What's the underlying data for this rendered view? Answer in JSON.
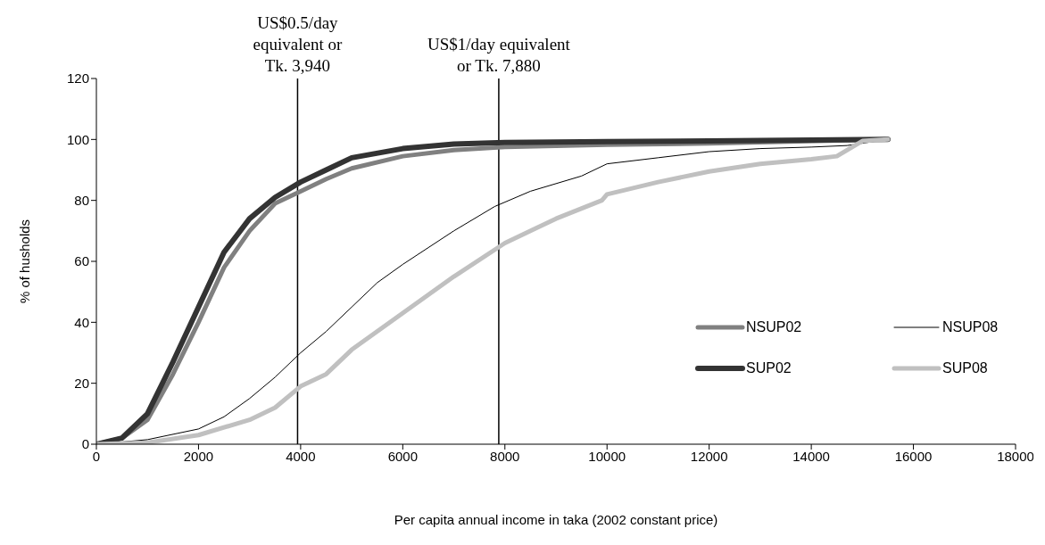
{
  "chart_data": {
    "type": "line",
    "xlabel": "Per capita annual income in taka (2002 constant price)",
    "ylabel": "% of husholds",
    "xlim": [
      0,
      18000
    ],
    "xticks": [
      0,
      2000,
      4000,
      6000,
      8000,
      10000,
      12000,
      14000,
      16000,
      18000
    ],
    "ylim": [
      0,
      120
    ],
    "yticks": [
      0,
      20,
      40,
      60,
      80,
      100,
      120
    ],
    "grid": false,
    "legend": "bottom right",
    "marker": "none",
    "line_style": "solid",
    "ref_lines": [
      {
        "axis": "x",
        "value": 3940,
        "label": "US$0.5/day equivalent or Tk. 3,940",
        "color": "#000000"
      },
      {
        "axis": "x",
        "value": 7880,
        "label": "US$1/day equivalent or Tk. 7,880",
        "color": "#000000"
      }
    ],
    "series": [
      {
        "name": "NSUP02",
        "color": "#808080",
        "x": [
          0,
          500,
          1000,
          1500,
          2000,
          2500,
          3000,
          3500,
          4000,
          4500,
          5000,
          6000,
          7000,
          8000,
          10000,
          12000,
          15500
        ],
        "values": [
          0,
          2,
          8,
          23,
          40,
          58,
          70,
          79,
          83,
          87,
          90.5,
          94.5,
          96.5,
          97.5,
          98.3,
          98.7,
          100
        ]
      },
      {
        "name": "NSUP08",
        "color": "#000000",
        "x": [
          0,
          1000,
          2000,
          2500,
          3000,
          3500,
          4000,
          4500,
          5000,
          5500,
          6000,
          7000,
          7800,
          8500,
          9500,
          10000,
          11000,
          12000,
          13000,
          14000,
          14700,
          15500
        ],
        "values": [
          0,
          1.5,
          5,
          9,
          15,
          22,
          30,
          37,
          45,
          53,
          59,
          70,
          78,
          83,
          88,
          92,
          94,
          96,
          97,
          97.5,
          98,
          100
        ]
      },
      {
        "name": "SUP02",
        "color": "#333333",
        "x": [
          0,
          500,
          1000,
          1500,
          2000,
          2500,
          3000,
          3500,
          4000,
          4500,
          5000,
          6000,
          7000,
          8000,
          10000,
          12000,
          15500
        ],
        "values": [
          0,
          2,
          10,
          27,
          45,
          63,
          74,
          81,
          86,
          90,
          94,
          97,
          98.5,
          99,
          99.3,
          99.5,
          100
        ]
      },
      {
        "name": "SUP08",
        "color": "#c0c0c0",
        "x": [
          0,
          1000,
          2000,
          3000,
          3500,
          4000,
          4500,
          5000,
          6000,
          7000,
          8000,
          9000,
          9900,
          10000,
          11000,
          12000,
          13000,
          14000,
          14500,
          15000,
          15500
        ],
        "values": [
          0,
          0.5,
          3,
          8,
          12,
          19,
          23,
          31,
          43,
          55,
          66,
          74,
          80,
          82,
          86,
          89.5,
          92,
          93.5,
          94.5,
          99.5,
          100
        ]
      }
    ]
  }
}
